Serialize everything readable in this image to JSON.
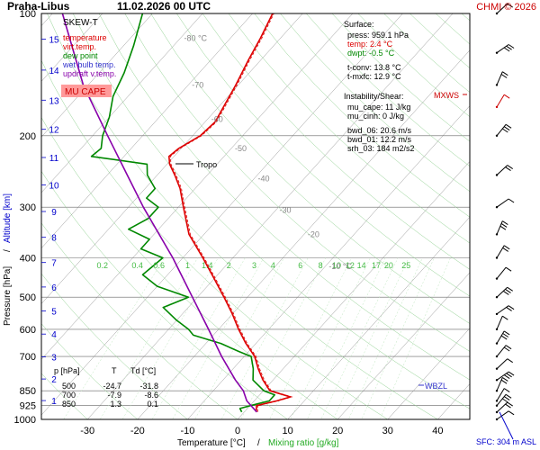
{
  "header": {
    "station": "Praha-Libus",
    "datetime": "11.02.2026 00 UTC",
    "credit": "CHMI © 2026"
  },
  "chart_data": {
    "type": "line",
    "diagram": "SKEW-T",
    "xlabel": "Temperature [°C]",
    "xlabel_sep": "/",
    "xlabel2": "Mixing ratio [g/kg]",
    "ylabel": "Pressure [hPa]",
    "ylabel_sep": "/",
    "ylabel2": "Altitude [km]",
    "x_ticks": [
      "-30",
      "-20",
      "-10",
      "0",
      "10",
      "20",
      "30",
      "40"
    ],
    "x_tick_values": [
      -30,
      -20,
      -10,
      0,
      10,
      20,
      30,
      40
    ],
    "p_ticks": [
      1000,
      925,
      850,
      700,
      600,
      500,
      400,
      300,
      200,
      100
    ],
    "km_ticks": [
      1,
      2,
      3,
      4,
      5,
      6,
      7,
      8,
      9,
      10,
      11,
      12,
      13,
      14,
      15
    ],
    "mixing_ratio_labels": [
      "0.2",
      "0.4",
      "0.6",
      "1",
      "1.4",
      "2",
      "3",
      "4",
      "6",
      "8",
      "10",
      "12",
      "14",
      "17",
      "20",
      "25"
    ],
    "isotherm_labels": [
      "-80 °C",
      "-70",
      "-60",
      "-50",
      "-40",
      "-30",
      "-20",
      "-10 °C"
    ],
    "legend": [
      {
        "label": "SKEW-T",
        "color": "#000000"
      },
      {
        "label": "temperature",
        "color": "#dd0000"
      },
      {
        "label": "virt.temp.",
        "color": "#dd0000"
      },
      {
        "label": "dew point",
        "color": "#008800"
      },
      {
        "label": "wet bulb temp.",
        "color": "#3333cc"
      },
      {
        "label": "updraft v.temp.",
        "color": "#8800aa"
      }
    ],
    "mu_cape_label": "MU CAPE",
    "tropo_label": "Tropo",
    "mxws_label": "MXWS",
    "wbzl_label": "WBZL",
    "sfc_label": "SFC: 304 m ASL",
    "surface": {
      "title": "Surface:",
      "lines": [
        "press: 959.1 hPa",
        "temp: 2.4 °C",
        "dwpt: -0.5 °C",
        "t-conv: 13.8 °C",
        "t-mxfc: 12.9 °C"
      ]
    },
    "instability": {
      "title": "Instability/Shear:",
      "lines": [
        "mu_cape: 11 J/kg",
        "mu_cinh: 0 J/kg",
        "bwd_06: 20.6 m/s",
        "bwd_01: 12.2 m/s",
        "srh_03: 184 m2/s2"
      ]
    },
    "level_table": {
      "header": [
        "p [hPa]",
        "T",
        "Td [°C]"
      ],
      "rows": [
        [
          "500",
          "-24.7",
          "-31.8"
        ],
        [
          "700",
          "-7.9",
          "-8.6"
        ],
        [
          "850",
          "1.3",
          "0.1"
        ]
      ]
    },
    "series": [
      {
        "name": "temperature",
        "color": "#dd0000",
        "points": [
          [
            959,
            2.4
          ],
          [
            925,
            1.3
          ],
          [
            900,
            4.5
          ],
          [
            880,
            6.5
          ],
          [
            850,
            1.3
          ],
          [
            800,
            -2.0
          ],
          [
            750,
            -5.0
          ],
          [
            700,
            -7.9
          ],
          [
            650,
            -12.0
          ],
          [
            600,
            -16.0
          ],
          [
            550,
            -20.0
          ],
          [
            500,
            -24.7
          ],
          [
            450,
            -30.0
          ],
          [
            400,
            -36.0
          ],
          [
            350,
            -43.0
          ],
          [
            300,
            -49.0
          ],
          [
            270,
            -53.0
          ],
          [
            250,
            -56.5
          ],
          [
            235,
            -59.5
          ],
          [
            225,
            -61.0
          ],
          [
            215,
            -60.5
          ],
          [
            200,
            -58.5
          ],
          [
            185,
            -58.0
          ],
          [
            170,
            -59.0
          ],
          [
            150,
            -60.5
          ],
          [
            130,
            -62.5
          ],
          [
            115,
            -64.0
          ],
          [
            100,
            -66.0
          ]
        ]
      },
      {
        "name": "dew point",
        "color": "#008800",
        "points": [
          [
            959,
            -0.5
          ],
          [
            940,
            -1.5
          ],
          [
            925,
            0.1
          ],
          [
            900,
            3.0
          ],
          [
            870,
            3.0
          ],
          [
            850,
            0.1
          ],
          [
            800,
            -4.0
          ],
          [
            750,
            -6.0
          ],
          [
            700,
            -8.6
          ],
          [
            680,
            -12.0
          ],
          [
            650,
            -17.0
          ],
          [
            620,
            -24.0
          ],
          [
            600,
            -26.0
          ],
          [
            570,
            -30.0
          ],
          [
            530,
            -35.0
          ],
          [
            500,
            -31.8
          ],
          [
            470,
            -40.0
          ],
          [
            440,
            -45.0
          ],
          [
            400,
            -44.0
          ],
          [
            380,
            -50.0
          ],
          [
            360,
            -50.0
          ],
          [
            340,
            -56.0
          ],
          [
            320,
            -54.0
          ],
          [
            300,
            -54.0
          ],
          [
            285,
            -58.0
          ],
          [
            270,
            -58.0
          ],
          [
            250,
            -62.0
          ],
          [
            235,
            -64.0
          ],
          [
            225,
            -76.5
          ],
          [
            215,
            -76.0
          ],
          [
            200,
            -78.0
          ],
          [
            180,
            -80.0
          ],
          [
            160,
            -83.0
          ],
          [
            140,
            -85.0
          ],
          [
            120,
            -88.0
          ],
          [
            100,
            -92.0
          ]
        ]
      },
      {
        "name": "updraft v.temp.",
        "color": "#8800aa",
        "points": [
          [
            959,
            2.5
          ],
          [
            900,
            -1.5
          ],
          [
            850,
            -4.0
          ],
          [
            800,
            -7.5
          ],
          [
            700,
            -14.5
          ],
          [
            600,
            -22.0
          ],
          [
            500,
            -31.0
          ],
          [
            400,
            -42.0
          ],
          [
            300,
            -57.0
          ],
          [
            250,
            -66.0
          ],
          [
            200,
            -77.0
          ],
          [
            150,
            -91.0
          ],
          [
            100,
            -108.0
          ]
        ]
      }
    ]
  }
}
